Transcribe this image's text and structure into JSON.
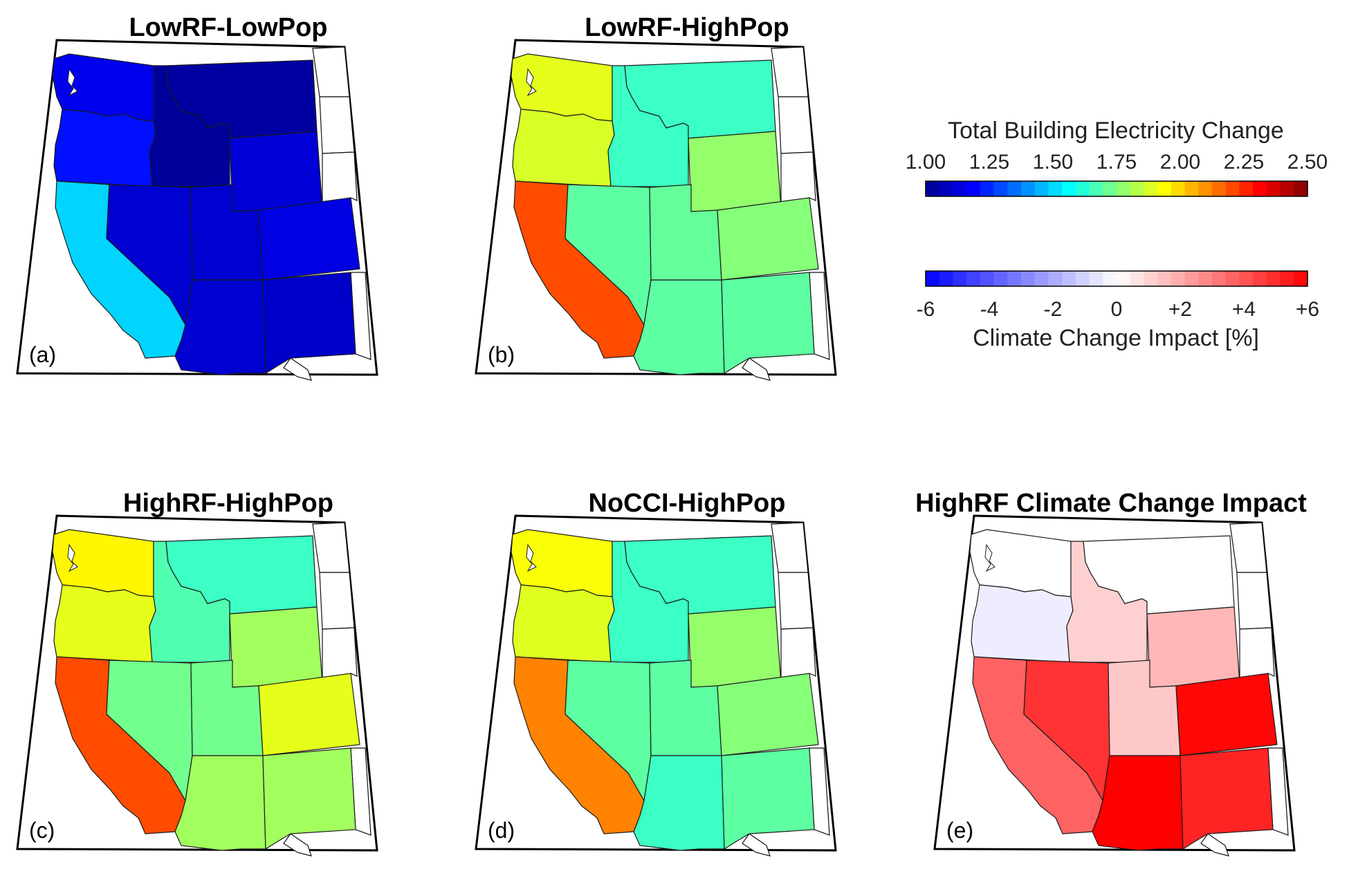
{
  "figure": {
    "panels": [
      {
        "id": "a",
        "title": "LowRF-LowPop",
        "label": "(a)",
        "states": {
          "WA": 1.16,
          "OR": 1.21,
          "CA": 1.5,
          "ID": 1.02,
          "MT": 1.03,
          "WY": 1.12,
          "NV": 1.11,
          "UT": 1.11,
          "CO": 1.14,
          "AZ": 1.11,
          "NM": 1.1
        }
      },
      {
        "id": "b",
        "title": "LowRF-HighPop",
        "label": "(b)",
        "states": {
          "WA": 1.9,
          "OR": 1.88,
          "CA": 2.2,
          "ID": 1.65,
          "MT": 1.65,
          "WY": 1.78,
          "NV": 1.7,
          "UT": 1.71,
          "CO": 1.76,
          "AZ": 1.7,
          "NM": 1.7
        }
      },
      {
        "id": "c",
        "title": "HighRF-HighPop",
        "label": "(c)",
        "states": {
          "WA": 1.95,
          "OR": 1.9,
          "CA": 2.2,
          "ID": 1.68,
          "MT": 1.65,
          "WY": 1.8,
          "NV": 1.73,
          "UT": 1.73,
          "CO": 1.9,
          "AZ": 1.8,
          "NM": 1.8
        }
      },
      {
        "id": "d",
        "title": "NoCCI-HighPop",
        "label": "(d)",
        "states": {
          "WA": 1.93,
          "OR": 1.89,
          "CA": 2.12,
          "ID": 1.65,
          "MT": 1.65,
          "WY": 1.78,
          "NV": 1.7,
          "UT": 1.7,
          "CO": 1.76,
          "AZ": 1.65,
          "NM": 1.7
        }
      }
    ],
    "impact_panel": {
      "id": "e",
      "title": "HighRF Climate Change Impact",
      "label": "(e)",
      "states": {
        "WA": 0.0,
        "OR": -0.5,
        "CA": 4.3,
        "ID": 1.3,
        "MT": 0.0,
        "WY": 2.0,
        "NV": 5.6,
        "UT": 1.5,
        "CO": 6.8,
        "AZ": 7.0,
        "NM": 6.0
      }
    },
    "colorbar_electricity": {
      "title": "Total Building Electricity Change",
      "ticks": [
        "1.00",
        "1.25",
        "1.50",
        "1.75",
        "2.00",
        "2.25",
        "2.50"
      ],
      "range": [
        1.0,
        2.5
      ],
      "colormap": "jet"
    },
    "colorbar_impact": {
      "title": "Climate Change Impact [%]",
      "ticks": [
        "-6",
        "-4",
        "-2",
        "0",
        "+2",
        "+4",
        "+6"
      ],
      "range": [
        -7,
        7
      ],
      "colormap": "blue-white-red"
    }
  }
}
